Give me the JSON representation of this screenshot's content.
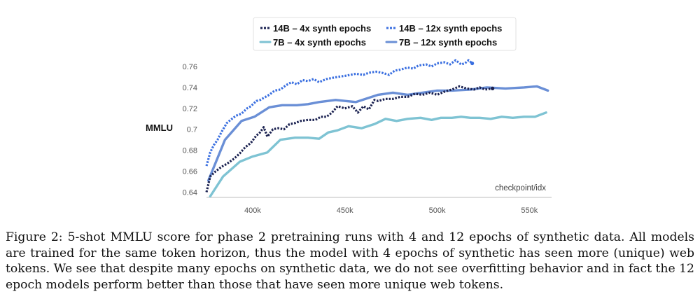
{
  "chart_data": {
    "type": "line",
    "title": "",
    "xlabel": "checkpoint/idx",
    "ylabel": "MMLU",
    "xlim": [
      375000,
      562000
    ],
    "ylim": [
      0.635,
      0.77
    ],
    "xticks": [
      400000,
      450000,
      500000,
      550000
    ],
    "xtick_labels": [
      "400k",
      "450k",
      "500k",
      "550k"
    ],
    "yticks": [
      0.64,
      0.66,
      0.68,
      0.7,
      0.72,
      0.74,
      0.76
    ],
    "ytick_labels": [
      "0.64",
      "0.66",
      "0.68",
      "0.7",
      "0.72",
      "0.74",
      "0.76"
    ],
    "grid": false,
    "legend_position": "top-center",
    "series": [
      {
        "name": "14B – 4x synth epochs",
        "color": "#1a2150",
        "style": "dotted",
        "x": [
          375000,
          377000,
          380000,
          383000,
          386000,
          390000,
          393000,
          396000,
          399000,
          402000,
          404000,
          406000,
          408000,
          411000,
          414000,
          417000,
          420000,
          423000,
          426000,
          430000,
          434000,
          437000,
          440000,
          443000,
          446000,
          450000,
          454000,
          457000,
          460000,
          463000,
          466000,
          468000,
          472000,
          476000,
          480000,
          484000,
          488000,
          492000,
          496000,
          500000,
          504000,
          508000,
          512000,
          516000,
          520000,
          523000,
          526000,
          530000
        ],
        "y": [
          0.64,
          0.655,
          0.66,
          0.664,
          0.667,
          0.672,
          0.677,
          0.683,
          0.687,
          0.694,
          0.697,
          0.702,
          0.693,
          0.7,
          0.701,
          0.7,
          0.705,
          0.706,
          0.708,
          0.709,
          0.709,
          0.712,
          0.712,
          0.716,
          0.722,
          0.72,
          0.722,
          0.716,
          0.722,
          0.719,
          0.728,
          0.727,
          0.729,
          0.729,
          0.731,
          0.731,
          0.734,
          0.733,
          0.735,
          0.733,
          0.736,
          0.738,
          0.741,
          0.739,
          0.738,
          0.74,
          0.738,
          0.739
        ]
      },
      {
        "name": "14B – 12x synth epochs",
        "color": "#3a6fe0",
        "style": "dotted",
        "x": [
          375000,
          377000,
          379000,
          381000,
          383000,
          386000,
          388000,
          391000,
          394000,
          397000,
          399000,
          402000,
          404000,
          407000,
          409000,
          412000,
          415000,
          418000,
          421000,
          424000,
          427000,
          430000,
          433000,
          436000,
          440000,
          443000,
          446000,
          450000,
          453000,
          456000,
          460000,
          463000,
          467000,
          470000,
          474000,
          477000,
          480000,
          484000,
          487000,
          490000,
          494000,
          497000,
          500000,
          504000,
          507000,
          510000,
          513000,
          515000,
          517000,
          519000
        ],
        "y": [
          0.665,
          0.678,
          0.685,
          0.69,
          0.697,
          0.706,
          0.709,
          0.713,
          0.715,
          0.72,
          0.722,
          0.727,
          0.728,
          0.731,
          0.733,
          0.737,
          0.738,
          0.742,
          0.745,
          0.743,
          0.747,
          0.746,
          0.748,
          0.745,
          0.748,
          0.749,
          0.75,
          0.751,
          0.752,
          0.753,
          0.752,
          0.754,
          0.755,
          0.754,
          0.752,
          0.756,
          0.757,
          0.759,
          0.758,
          0.761,
          0.762,
          0.76,
          0.763,
          0.764,
          0.762,
          0.766,
          0.762,
          0.763,
          0.766,
          0.763
        ]
      },
      {
        "name": "7B – 4x synth epochs",
        "color": "#7ec3d3",
        "style": "solid",
        "x": [
          377000,
          384000,
          393000,
          400000,
          408000,
          415000,
          423000,
          430000,
          436000,
          441000,
          446000,
          452000,
          459000,
          466000,
          472000,
          478000,
          484000,
          491000,
          497000,
          502000,
          508000,
          513000,
          518000,
          523000,
          529000,
          535000,
          541000,
          547000,
          553000,
          559000
        ],
        "y": [
          0.636,
          0.655,
          0.669,
          0.674,
          0.678,
          0.69,
          0.692,
          0.692,
          0.691,
          0.697,
          0.699,
          0.703,
          0.701,
          0.705,
          0.71,
          0.708,
          0.71,
          0.711,
          0.709,
          0.711,
          0.711,
          0.712,
          0.711,
          0.711,
          0.71,
          0.712,
          0.711,
          0.712,
          0.712,
          0.716
        ]
      },
      {
        "name": "7B – 12x synth epochs",
        "color": "#6a8fd6",
        "style": "solid",
        "x": [
          376000,
          385000,
          394000,
          401000,
          409000,
          416000,
          424000,
          430000,
          436000,
          445000,
          456000,
          468000,
          476000,
          484000,
          492000,
          500000,
          508000,
          518000,
          527000,
          537000,
          547000,
          554000,
          560000
        ],
        "y": [
          0.651,
          0.69,
          0.708,
          0.712,
          0.721,
          0.723,
          0.723,
          0.724,
          0.726,
          0.728,
          0.726,
          0.733,
          0.735,
          0.733,
          0.735,
          0.737,
          0.737,
          0.738,
          0.74,
          0.739,
          0.74,
          0.741,
          0.737
        ]
      }
    ]
  },
  "caption": "Figure 2: 5-shot MMLU score for phase 2 pretraining runs with 4 and 12 epochs of synthetic data. All models are trained for the same token horizon, thus the model with 4 epochs of synthetic has seen more (unique) web tokens. We see that despite many epochs on synthetic data, we do not see overfitting behavior and in fact the 12 epoch models perform better than those that have seen more unique web tokens."
}
